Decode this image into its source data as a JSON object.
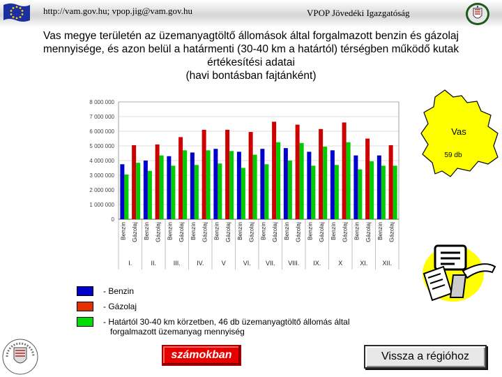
{
  "header": {
    "left_text": "http://vam.gov.hu; vpop.jig@vam.gov.hu",
    "center_text": "VPOP Jövedéki Igazgatóság"
  },
  "title_lines": [
    "Vas megye területén az üzemanyagtöltő állomások által forgalmazott benzin és gázolaj",
    "mennyisége, és azon belül a határmenti (30-40 km a határtól) térségben működő kutak",
    "értékesítési adatai",
    "(havi bontásban fajtánként)"
  ],
  "map": {
    "region_name": "Vas",
    "station_count": "59 db",
    "fill_color": "#ffff00"
  },
  "chart_data": {
    "type": "bar",
    "ylim": [
      0,
      8000000
    ],
    "y_ticks": [
      "0",
      "1 000 000",
      "2 000 000",
      "3 000 000",
      "4 000 000",
      "5 000 000",
      "6 000 000",
      "7 000 000",
      "8 000 000"
    ],
    "months": [
      "I.",
      "II.",
      "III.",
      "IV.",
      "V",
      "VI.",
      "VII.",
      "VIII.",
      "IX.",
      "X",
      "XI.",
      "XII."
    ],
    "fuel_labels": [
      "Benzin",
      "Gázolaj"
    ],
    "series": [
      {
        "name": "Benzin",
        "color": "#0000cc",
        "values": [
          3750000,
          4000000,
          4300000,
          4550000,
          4800000,
          4600000,
          4800000,
          4850000,
          4600000,
          4700000,
          4350000,
          4350000
        ]
      },
      {
        "name": "Gázolaj",
        "color": "#cc0000",
        "values": [
          5050000,
          5100000,
          5600000,
          6100000,
          6100000,
          5950000,
          6650000,
          6450000,
          6150000,
          6600000,
          5500000,
          5050000
        ]
      },
      {
        "name": "Határtól 30-40 km körzetben",
        "color": "#00cc00",
        "values": [
          3050000,
          3850000,
          4350000,
          4700000,
          4700000,
          4650000,
          5250000,
          5200000,
          4950000,
          5250000,
          3950000,
          3650000
        ]
      }
    ],
    "bar_values_detail": [
      [
        [
          3750000,
          3050000
        ],
        [
          5050000,
          3850000
        ]
      ],
      [
        [
          4000000,
          3300000
        ],
        [
          5100000,
          4350000
        ]
      ],
      [
        [
          4300000,
          3650000
        ],
        [
          5600000,
          4700000
        ]
      ],
      [
        [
          4550000,
          3700000
        ],
        [
          6100000,
          4700000
        ]
      ],
      [
        [
          4800000,
          3800000
        ],
        [
          6100000,
          4650000
        ]
      ],
      [
        [
          4600000,
          3500000
        ],
        [
          5950000,
          4400000
        ]
      ],
      [
        [
          4800000,
          3750000
        ],
        [
          6650000,
          5250000
        ]
      ],
      [
        [
          4850000,
          4000000
        ],
        [
          6450000,
          5200000
        ]
      ],
      [
        [
          4600000,
          3650000
        ],
        [
          6150000,
          4950000
        ]
      ],
      [
        [
          4700000,
          3700000
        ],
        [
          6600000,
          5250000
        ]
      ],
      [
        [
          4350000,
          3400000
        ],
        [
          5500000,
          3950000
        ]
      ],
      [
        [
          4350000,
          3650000
        ],
        [
          5050000,
          3650000
        ]
      ]
    ]
  },
  "legend": {
    "items": [
      {
        "label": "- Benzin",
        "color": "#0000cc"
      },
      {
        "label": "- Gázolaj",
        "color": "#e62e00"
      },
      {
        "label": "- Határtól 30-40 km körzetben, 46 db üzemanyagtöltő állomás által\n   forgalmazott üzemanyag mennyiség",
        "color": "#00dd00"
      }
    ]
  },
  "buttons": {
    "numbers_label": "számokban",
    "back_label": "Vissza a régióhoz"
  }
}
